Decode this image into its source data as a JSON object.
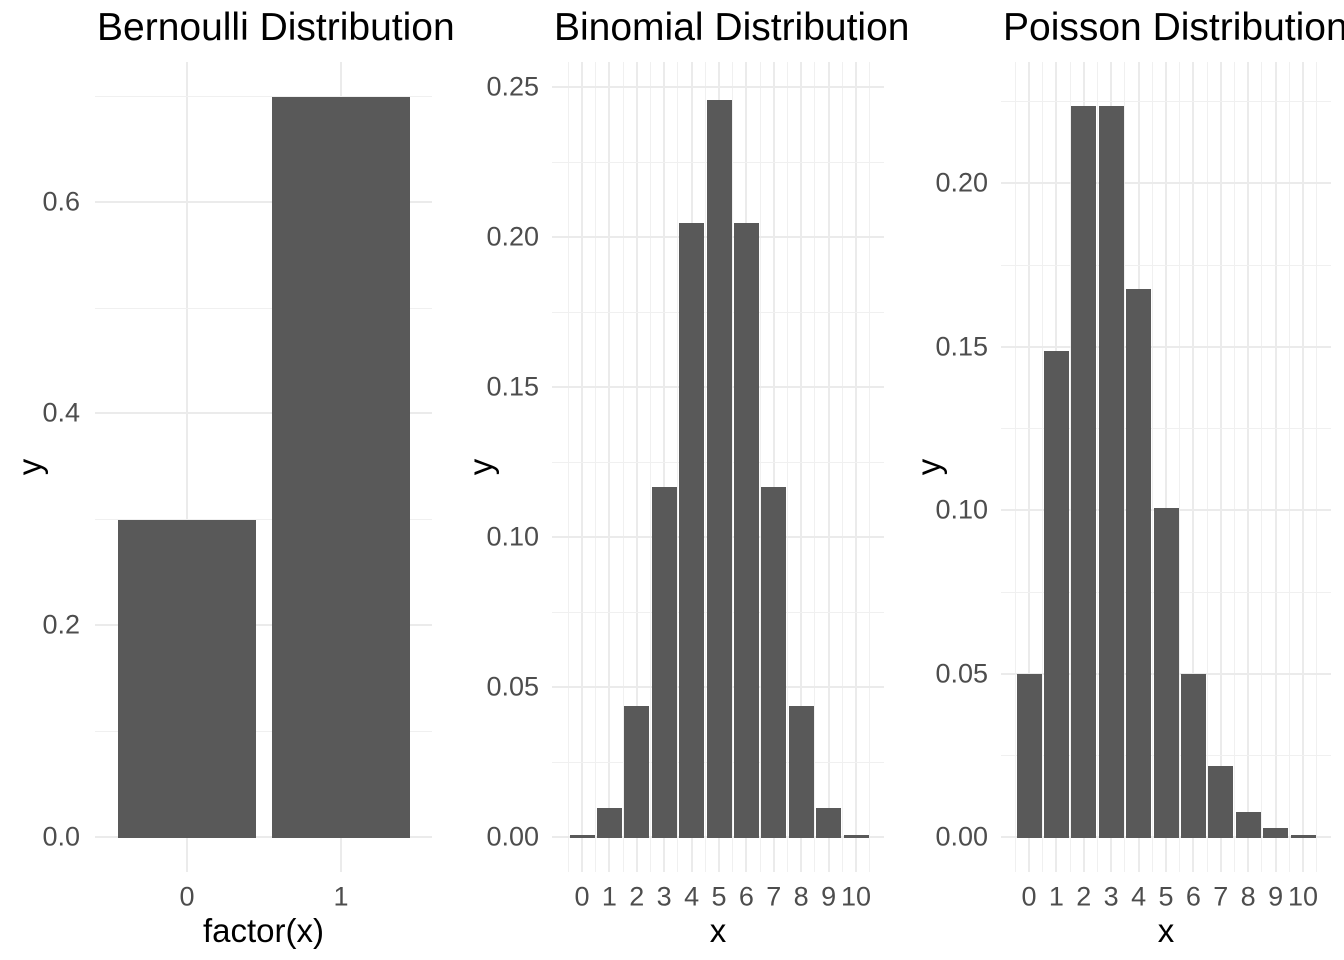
{
  "style": {
    "background": "#FFFFFF",
    "bar_fill": "#595959",
    "grid_major_color": "#EBEBEB",
    "grid_minor_color": "#F0F0F0",
    "tick_label_color": "#4D4D4D",
    "title_color": "#000000",
    "axis_title_color": "#000000"
  },
  "chart_data": [
    {
      "type": "bar",
      "title": "Bernoulli Distribution",
      "xlabel": "factor(x)",
      "ylabel": "y",
      "categories": [
        "0",
        "1"
      ],
      "values": [
        0.3,
        0.7
      ],
      "y_ticks": [
        {
          "label": "0.0",
          "value": 0.0
        },
        {
          "label": "0.2",
          "value": 0.2
        },
        {
          "label": "0.4",
          "value": 0.4
        },
        {
          "label": "0.6",
          "value": 0.6
        }
      ],
      "y_minor": [
        0.1,
        0.3,
        0.5,
        0.7
      ],
      "ylim": [
        0,
        0.735
      ],
      "grid": true,
      "legend": "none",
      "x_axis_type": "discrete"
    },
    {
      "type": "bar",
      "title": "Binomial Distribution",
      "xlabel": "x",
      "ylabel": "y",
      "categories": [
        "0",
        "1",
        "2",
        "3",
        "4",
        "5",
        "6",
        "7",
        "8",
        "9",
        "10"
      ],
      "values": [
        0.001,
        0.01,
        0.044,
        0.117,
        0.205,
        0.246,
        0.205,
        0.117,
        0.044,
        0.01,
        0.001
      ],
      "y_ticks": [
        {
          "label": "0.00",
          "value": 0.0
        },
        {
          "label": "0.05",
          "value": 0.05
        },
        {
          "label": "0.10",
          "value": 0.1
        },
        {
          "label": "0.15",
          "value": 0.15
        },
        {
          "label": "0.20",
          "value": 0.2
        },
        {
          "label": "0.25",
          "value": 0.25
        }
      ],
      "y_minor": [
        0.025,
        0.075,
        0.125,
        0.175,
        0.225
      ],
      "ylim": [
        0,
        0.258
      ],
      "grid": true,
      "legend": "none",
      "x_axis_type": "discrete-with-minor"
    },
    {
      "type": "bar",
      "title": "Poisson Distribution",
      "xlabel": "x",
      "ylabel": "y",
      "categories": [
        "0",
        "1",
        "2",
        "3",
        "4",
        "5",
        "6",
        "7",
        "8",
        "9",
        "10"
      ],
      "values": [
        0.05,
        0.149,
        0.224,
        0.224,
        0.168,
        0.101,
        0.05,
        0.022,
        0.008,
        0.003,
        0.001
      ],
      "y_ticks": [
        {
          "label": "0.00",
          "value": 0.0
        },
        {
          "label": "0.05",
          "value": 0.05
        },
        {
          "label": "0.10",
          "value": 0.1
        },
        {
          "label": "0.15",
          "value": 0.15
        },
        {
          "label": "0.20",
          "value": 0.2
        }
      ],
      "y_minor": [
        0.025,
        0.075,
        0.125,
        0.175,
        0.225
      ],
      "ylim": [
        0,
        0.2365
      ],
      "grid": true,
      "legend": "none",
      "x_axis_type": "discrete-with-minor"
    }
  ]
}
